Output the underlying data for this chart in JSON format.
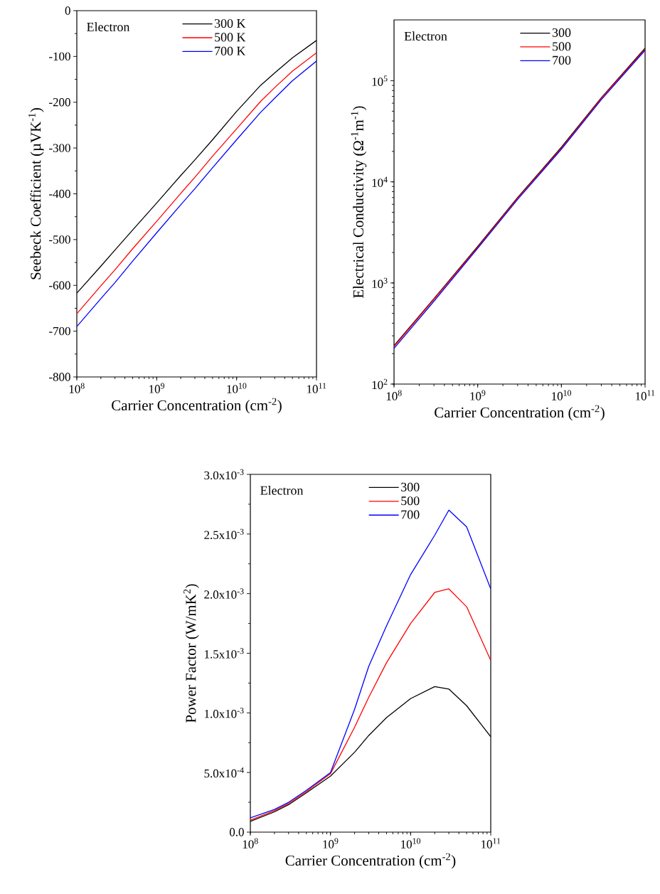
{
  "chart_data": [
    {
      "type": "line",
      "xlabel": "Carrier Concentration (cm$^{-2}$)",
      "ylabel": "Seebeck Coefficient (µVK$^{-1}$)",
      "log": "x",
      "legend": "top right",
      "annotations": [
        "Electron"
      ],
      "x": [
        100000000.0,
        200000000.0,
        300000000.0,
        500000000.0,
        1000000000.0,
        2000000000.0,
        3000000000.0,
        5000000000.0,
        10000000000.0,
        20000000000.0,
        30000000000.0,
        50000000000.0,
        100000000000.0
      ],
      "xlim": [
        100000000.0,
        100000000000.0
      ],
      "xticks": [
        {
          "value": 100000000.0,
          "label": "10$^{8}$"
        },
        {
          "value": 1000000000.0,
          "label": "10$^{9}$"
        },
        {
          "value": 10000000000.0,
          "label": "10$^{10}$"
        },
        {
          "value": 100000000000.0,
          "label": "10$^{11}$"
        }
      ],
      "ylim": [
        -800,
        0
      ],
      "yticks": [
        -800,
        -700,
        -600,
        -500,
        -400,
        -300,
        -200,
        -100,
        0
      ],
      "series": [
        {
          "name": "300 K",
          "color": "#000000",
          "values": [
            -617,
            -558,
            -523,
            -479,
            -420,
            -360,
            -326,
            -282,
            -220,
            -163,
            -136,
            -103,
            -65
          ]
        },
        {
          "name": "500 K",
          "color": "#ff0000",
          "values": [
            -662,
            -601,
            -566,
            -520,
            -460,
            -399,
            -364,
            -318,
            -258,
            -198,
            -168,
            -132,
            -92
          ]
        },
        {
          "name": "700 K",
          "color": "#0000ff",
          "values": [
            -690,
            -629,
            -594,
            -547,
            -485,
            -424,
            -389,
            -343,
            -282,
            -222,
            -191,
            -153,
            -110
          ]
        }
      ]
    },
    {
      "type": "line",
      "xlabel": "Carrier Concentration (cm$^{-2}$)",
      "ylabel": "Electrical Conductivity (Ω$^{-1}$m$^{-1}$)",
      "log": "xy",
      "legend": "top right",
      "annotations": [
        "Electron"
      ],
      "x": [
        100000000.0,
        300000000.0,
        1000000000.0,
        3000000000.0,
        10000000000.0,
        30000000000.0,
        100000000000.0
      ],
      "xlim": [
        100000000.0,
        100000000000.0
      ],
      "xticks": [
        {
          "value": 100000000.0,
          "label": "10$^{8}$"
        },
        {
          "value": 1000000000.0,
          "label": "10$^{9}$"
        },
        {
          "value": 10000000000.0,
          "label": "10$^{10}$"
        },
        {
          "value": 100000000000.0,
          "label": "10$^{11}$"
        }
      ],
      "ylim": [
        100,
        400000
      ],
      "yticks": [
        {
          "value": 100,
          "label": "10$^{2}$"
        },
        {
          "value": 1000,
          "label": "10$^{3}$"
        },
        {
          "value": 10000,
          "label": "10$^{4}$"
        },
        {
          "value": 100000,
          "label": "10$^{5}$"
        }
      ],
      "series": [
        {
          "name": "300",
          "color": "#000000",
          "values": [
            240,
            700,
            2300,
            7000,
            22000,
            68000,
            210000
          ]
        },
        {
          "name": "500",
          "color": "#ff0000",
          "values": [
            235,
            690,
            2250,
            6900,
            21500,
            67000,
            205000
          ]
        },
        {
          "name": "700",
          "color": "#0000ff",
          "values": [
            225,
            660,
            2200,
            6700,
            21000,
            65000,
            200000
          ]
        }
      ]
    },
    {
      "type": "line",
      "xlabel": "Carrier Concentration (cm$^{-2}$)",
      "ylabel": "Power Factor (W/mK$^{2}$)",
      "log": "x",
      "legend": "top right",
      "annotations": [
        "Electron"
      ],
      "x": [
        100000000.0,
        200000000.0,
        300000000.0,
        500000000.0,
        1000000000.0,
        2000000000.0,
        3000000000.0,
        5000000000.0,
        10000000000.0,
        20000000000.0,
        30000000000.0,
        50000000000.0,
        100000000000.0
      ],
      "xlim": [
        100000000.0,
        100000000000.0
      ],
      "xticks": [
        {
          "value": 100000000.0,
          "label": "10$^{8}$"
        },
        {
          "value": 1000000000.0,
          "label": "10$^{9}$"
        },
        {
          "value": 10000000000.0,
          "label": "10$^{10}$"
        },
        {
          "value": 100000000000.0,
          "label": "10$^{11}$"
        }
      ],
      "ylim": [
        0,
        0.003
      ],
      "yticks": [
        {
          "value": 0,
          "label": "0.0"
        },
        {
          "value": 0.0005,
          "label": "5.0x10$^{-4}$"
        },
        {
          "value": 0.001,
          "label": "1.0x10$^{-3}$"
        },
        {
          "value": 0.0015,
          "label": "1.5x10$^{-3}$"
        },
        {
          "value": 0.002,
          "label": "2.0x10$^{-3}$"
        },
        {
          "value": 0.0025,
          "label": "2.5x10$^{-3}$"
        },
        {
          "value": 0.003,
          "label": "3.0x10$^{-3}$"
        }
      ],
      "series": [
        {
          "name": "300",
          "color": "#000000",
          "values": [
            9e-05,
            0.00017,
            0.00023,
            0.00033,
            0.00047,
            0.00067,
            0.00081,
            0.00096,
            0.00112,
            0.00122,
            0.0012,
            0.00106,
            0.0008
          ]
        },
        {
          "name": "500",
          "color": "#ff0000",
          "values": [
            0.0001,
            0.00018,
            0.00024,
            0.00034,
            0.00049,
            0.00088,
            0.00113,
            0.00142,
            0.00175,
            0.00201,
            0.00204,
            0.00189,
            0.00144
          ]
        },
        {
          "name": "700",
          "color": "#0000ff",
          "values": [
            0.00012,
            0.00019,
            0.00025,
            0.00035,
            0.0005,
            0.00103,
            0.00139,
            0.00173,
            0.00216,
            0.00249,
            0.0027,
            0.00256,
            0.00204
          ]
        }
      ]
    }
  ]
}
